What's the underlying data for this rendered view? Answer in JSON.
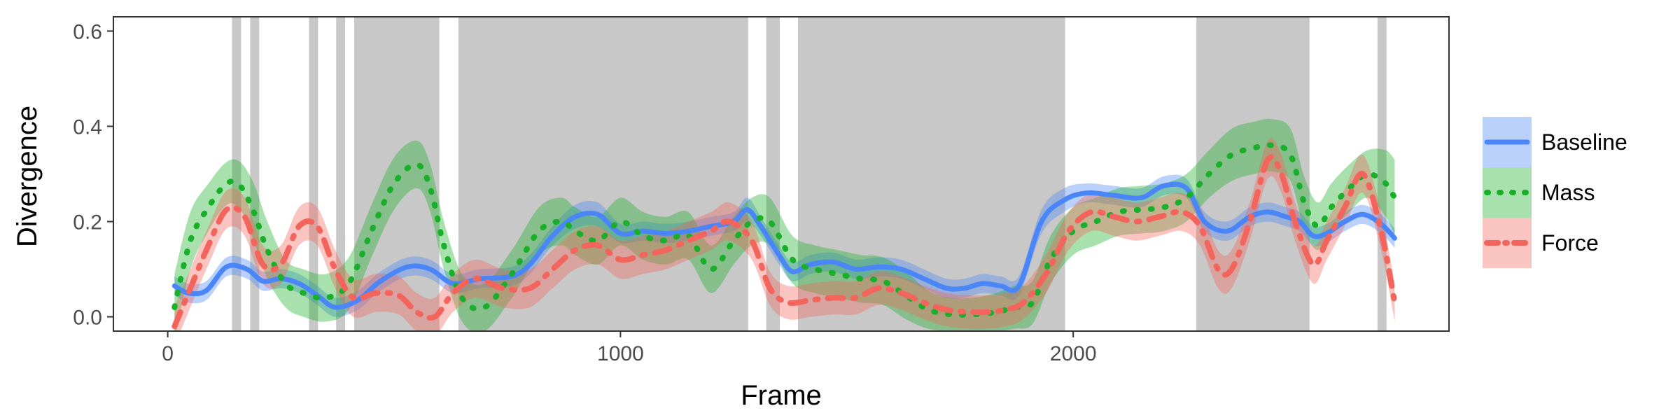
{
  "chart_data": {
    "type": "line",
    "xlabel": "Frame",
    "ylabel": "Divergence",
    "xlim": [
      -120,
      2830
    ],
    "ylim": [
      -0.03,
      0.63
    ],
    "xticks": [
      0,
      1000,
      2000
    ],
    "xtick_labels": [
      "0",
      "1000",
      "2000"
    ],
    "yticks": [
      0.0,
      0.2,
      0.4,
      0.6
    ],
    "ytick_labels": [
      "0.0",
      "0.2",
      "0.4",
      "0.6"
    ],
    "grid": false,
    "legend_position": "right",
    "shaded_intervals": [
      [
        142,
        162
      ],
      [
        182,
        202
      ],
      [
        312,
        332
      ],
      [
        372,
        392
      ],
      [
        412,
        600
      ],
      [
        642,
        1282
      ],
      [
        1322,
        1352
      ],
      [
        1392,
        1982
      ],
      [
        2272,
        2522
      ],
      [
        2672,
        2692
      ]
    ],
    "series": [
      {
        "name": "Baseline",
        "color": "#4a86f7",
        "dash": "solid",
        "x": [
          15,
          45,
          85,
          130,
          175,
          210,
          250,
          290,
          330,
          370,
          420,
          470,
          530,
          580,
          630,
          690,
          760,
          800,
          850,
          900,
          950,
          1000,
          1050,
          1100,
          1150,
          1200,
          1250,
          1280,
          1310,
          1350,
          1380,
          1420,
          1470,
          1520,
          1570,
          1620,
          1670,
          1720,
          1760,
          1800,
          1840,
          1880,
          1930,
          1980,
          2030,
          2090,
          2150,
          2200,
          2250,
          2290,
          2340,
          2390,
          2430,
          2470,
          2500,
          2530,
          2560,
          2600,
          2640,
          2680,
          2710
        ],
        "y": [
          0.065,
          0.05,
          0.055,
          0.105,
          0.1,
          0.075,
          0.08,
          0.07,
          0.045,
          0.02,
          0.035,
          0.075,
          0.105,
          0.1,
          0.07,
          0.08,
          0.085,
          0.11,
          0.17,
          0.21,
          0.215,
          0.175,
          0.18,
          0.175,
          0.18,
          0.19,
          0.2,
          0.225,
          0.19,
          0.13,
          0.095,
          0.11,
          0.115,
          0.1,
          0.105,
          0.1,
          0.08,
          0.06,
          0.06,
          0.07,
          0.065,
          0.065,
          0.2,
          0.245,
          0.26,
          0.255,
          0.25,
          0.275,
          0.27,
          0.2,
          0.18,
          0.21,
          0.22,
          0.21,
          0.2,
          0.17,
          0.175,
          0.2,
          0.215,
          0.195,
          0.165
        ],
        "band": [
          0.02,
          0.02,
          0.02,
          0.02,
          0.02,
          0.02,
          0.02,
          0.02,
          0.02,
          0.02,
          0.02,
          0.02,
          0.02,
          0.02,
          0.02,
          0.02,
          0.02,
          0.02,
          0.02,
          0.025,
          0.025,
          0.02,
          0.02,
          0.02,
          0.02,
          0.02,
          0.02,
          0.025,
          0.02,
          0.02,
          0.02,
          0.02,
          0.02,
          0.02,
          0.02,
          0.02,
          0.02,
          0.02,
          0.02,
          0.02,
          0.02,
          0.02,
          0.025,
          0.025,
          0.02,
          0.02,
          0.02,
          0.02,
          0.02,
          0.02,
          0.02,
          0.02,
          0.02,
          0.02,
          0.02,
          0.02,
          0.02,
          0.02,
          0.02,
          0.02,
          0.02
        ]
      },
      {
        "name": "Mass",
        "color": "#1aaf2b",
        "dash": "dotted",
        "x": [
          15,
          50,
          90,
          130,
          160,
          190,
          220,
          260,
          300,
          350,
          400,
          450,
          500,
          550,
          580,
          610,
          650,
          700,
          760,
          820,
          870,
          900,
          950,
          1000,
          1050,
          1100,
          1150,
          1200,
          1250,
          1290,
          1330,
          1380,
          1430,
          1480,
          1530,
          1580,
          1630,
          1680,
          1730,
          1780,
          1830,
          1870,
          1910,
          1950,
          2000,
          2050,
          2100,
          2150,
          2200,
          2250,
          2300,
          2350,
          2400,
          2440,
          2480,
          2510,
          2540,
          2570,
          2610,
          2650,
          2690,
          2710
        ],
        "y": [
          0.02,
          0.16,
          0.23,
          0.28,
          0.275,
          0.22,
          0.14,
          0.07,
          0.05,
          0.04,
          0.07,
          0.18,
          0.28,
          0.32,
          0.27,
          0.15,
          0.04,
          0.02,
          0.09,
          0.18,
          0.2,
          0.18,
          0.16,
          0.2,
          0.17,
          0.16,
          0.17,
          0.1,
          0.16,
          0.2,
          0.2,
          0.12,
          0.1,
          0.09,
          0.08,
          0.075,
          0.045,
          0.015,
          0.005,
          0.005,
          0.01,
          0.02,
          0.03,
          0.12,
          0.18,
          0.2,
          0.22,
          0.225,
          0.23,
          0.25,
          0.3,
          0.34,
          0.355,
          0.36,
          0.34,
          0.24,
          0.19,
          0.23,
          0.27,
          0.3,
          0.28,
          0.25
        ],
        "band": [
          0.07,
          0.06,
          0.05,
          0.045,
          0.05,
          0.06,
          0.06,
          0.05,
          0.05,
          0.05,
          0.055,
          0.055,
          0.055,
          0.05,
          0.05,
          0.05,
          0.05,
          0.05,
          0.05,
          0.05,
          0.05,
          0.05,
          0.05,
          0.05,
          0.05,
          0.05,
          0.05,
          0.05,
          0.05,
          0.05,
          0.05,
          0.05,
          0.05,
          0.05,
          0.05,
          0.05,
          0.05,
          0.04,
          0.035,
          0.035,
          0.04,
          0.045,
          0.045,
          0.05,
          0.05,
          0.05,
          0.05,
          0.05,
          0.05,
          0.05,
          0.05,
          0.055,
          0.055,
          0.055,
          0.055,
          0.055,
          0.05,
          0.05,
          0.05,
          0.05,
          0.07,
          0.08
        ]
      },
      {
        "name": "Force",
        "color": "#f2645c",
        "dash": "dashdot",
        "x": [
          15,
          50,
          90,
          130,
          170,
          210,
          250,
          290,
          330,
          370,
          410,
          460,
          510,
          550,
          590,
          630,
          680,
          740,
          800,
          850,
          900,
          950,
          1000,
          1050,
          1100,
          1150,
          1200,
          1240,
          1290,
          1330,
          1370,
          1420,
          1470,
          1520,
          1570,
          1620,
          1670,
          1720,
          1770,
          1810,
          1850,
          1890,
          1940,
          1990,
          2040,
          2090,
          2140,
          2190,
          2240,
          2280,
          2320,
          2350,
          2390,
          2430,
          2460,
          2490,
          2530,
          2560,
          2600,
          2640,
          2680,
          2710
        ],
        "y": [
          -0.02,
          0.06,
          0.15,
          0.225,
          0.21,
          0.11,
          0.11,
          0.19,
          0.19,
          0.1,
          0.04,
          0.05,
          0.045,
          0.01,
          0.0,
          0.05,
          0.08,
          0.06,
          0.06,
          0.1,
          0.14,
          0.15,
          0.12,
          0.13,
          0.14,
          0.16,
          0.18,
          0.2,
          0.16,
          0.06,
          0.03,
          0.035,
          0.04,
          0.04,
          0.06,
          0.05,
          0.03,
          0.015,
          0.01,
          0.01,
          0.015,
          0.03,
          0.09,
          0.18,
          0.22,
          0.21,
          0.2,
          0.21,
          0.22,
          0.19,
          0.1,
          0.1,
          0.2,
          0.33,
          0.3,
          0.2,
          0.11,
          0.16,
          0.23,
          0.3,
          0.18,
          0.03
        ],
        "band": [
          0.04,
          0.04,
          0.04,
          0.04,
          0.04,
          0.04,
          0.04,
          0.04,
          0.04,
          0.04,
          0.04,
          0.04,
          0.04,
          0.04,
          0.04,
          0.04,
          0.04,
          0.04,
          0.04,
          0.04,
          0.04,
          0.04,
          0.04,
          0.04,
          0.04,
          0.04,
          0.04,
          0.04,
          0.04,
          0.035,
          0.035,
          0.035,
          0.035,
          0.035,
          0.035,
          0.035,
          0.035,
          0.035,
          0.035,
          0.035,
          0.035,
          0.035,
          0.04,
          0.04,
          0.04,
          0.04,
          0.04,
          0.04,
          0.04,
          0.04,
          0.04,
          0.04,
          0.04,
          0.04,
          0.04,
          0.04,
          0.04,
          0.04,
          0.04,
          0.04,
          0.04,
          0.04
        ]
      }
    ]
  }
}
